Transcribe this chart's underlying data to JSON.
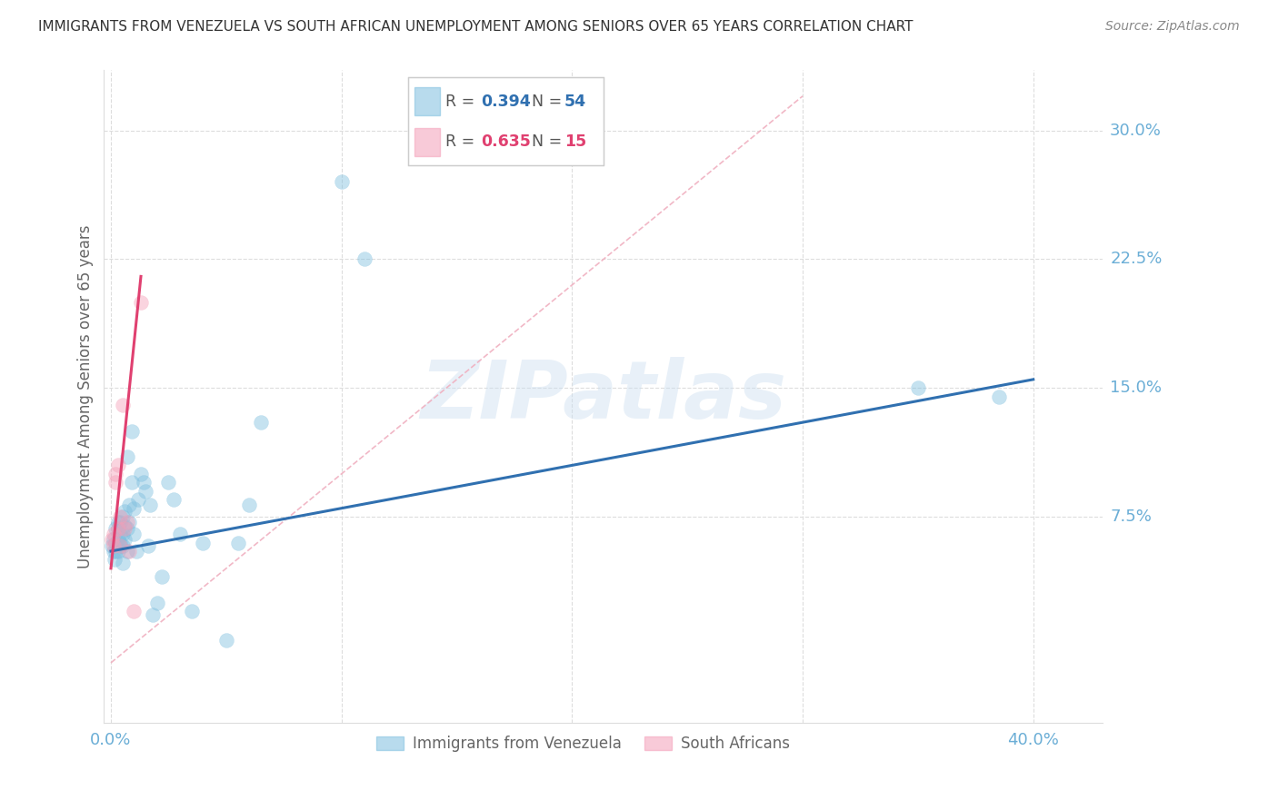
{
  "title": "IMMIGRANTS FROM VENEZUELA VS SOUTH AFRICAN UNEMPLOYMENT AMONG SENIORS OVER 65 YEARS CORRELATION CHART",
  "source": "Source: ZipAtlas.com",
  "ylabel": "Unemployment Among Seniors over 65 years",
  "ytick_labels": [
    "7.5%",
    "15.0%",
    "22.5%",
    "30.0%"
  ],
  "ytick_vals": [
    0.075,
    0.15,
    0.225,
    0.3
  ],
  "xtick_labels": [
    "0.0%",
    "40.0%"
  ],
  "xtick_vals": [
    0.0,
    0.4
  ],
  "xlim": [
    -0.003,
    0.43
  ],
  "ylim": [
    -0.045,
    0.335
  ],
  "blue_color": "#7fbfdf",
  "pink_color": "#f4a0b8",
  "blue_line_color": "#3070b0",
  "pink_line_color": "#e04070",
  "diag_line_color": "#f0b0c0",
  "grid_color": "#dddddd",
  "tick_color": "#6baed6",
  "watermark_text": "ZIPatlas",
  "blue_scatter_x": [
    0.0005,
    0.001,
    0.001,
    0.0015,
    0.002,
    0.002,
    0.002,
    0.003,
    0.003,
    0.003,
    0.003,
    0.004,
    0.004,
    0.004,
    0.004,
    0.005,
    0.005,
    0.005,
    0.005,
    0.006,
    0.006,
    0.006,
    0.007,
    0.007,
    0.007,
    0.008,
    0.008,
    0.009,
    0.009,
    0.01,
    0.01,
    0.011,
    0.012,
    0.013,
    0.014,
    0.015,
    0.016,
    0.017,
    0.018,
    0.02,
    0.022,
    0.025,
    0.027,
    0.03,
    0.035,
    0.04,
    0.05,
    0.055,
    0.06,
    0.065,
    0.1,
    0.11,
    0.35,
    0.385
  ],
  "blue_scatter_y": [
    0.058,
    0.062,
    0.055,
    0.05,
    0.06,
    0.068,
    0.055,
    0.062,
    0.068,
    0.055,
    0.072,
    0.058,
    0.065,
    0.072,
    0.06,
    0.065,
    0.075,
    0.058,
    0.048,
    0.07,
    0.078,
    0.062,
    0.055,
    0.068,
    0.11,
    0.072,
    0.082,
    0.095,
    0.125,
    0.08,
    0.065,
    0.055,
    0.085,
    0.1,
    0.095,
    0.09,
    0.058,
    0.082,
    0.018,
    0.025,
    0.04,
    0.095,
    0.085,
    0.065,
    0.02,
    0.06,
    0.003,
    0.06,
    0.082,
    0.13,
    0.27,
    0.225,
    0.15,
    0.145
  ],
  "pink_scatter_x": [
    0.0005,
    0.001,
    0.001,
    0.002,
    0.002,
    0.003,
    0.003,
    0.004,
    0.004,
    0.005,
    0.006,
    0.007,
    0.008,
    0.01,
    0.013
  ],
  "pink_scatter_y": [
    0.062,
    0.065,
    0.058,
    0.1,
    0.095,
    0.068,
    0.105,
    0.058,
    0.075,
    0.14,
    0.068,
    0.072,
    0.055,
    0.02,
    0.2
  ],
  "blue_trend_x": [
    0.0,
    0.4
  ],
  "blue_trend_y": [
    0.055,
    0.155
  ],
  "pink_trend_x": [
    0.0,
    0.013
  ],
  "pink_trend_y": [
    0.045,
    0.215
  ],
  "diag_trend_x": [
    0.0,
    0.3
  ],
  "diag_trend_y": [
    -0.01,
    0.32
  ]
}
